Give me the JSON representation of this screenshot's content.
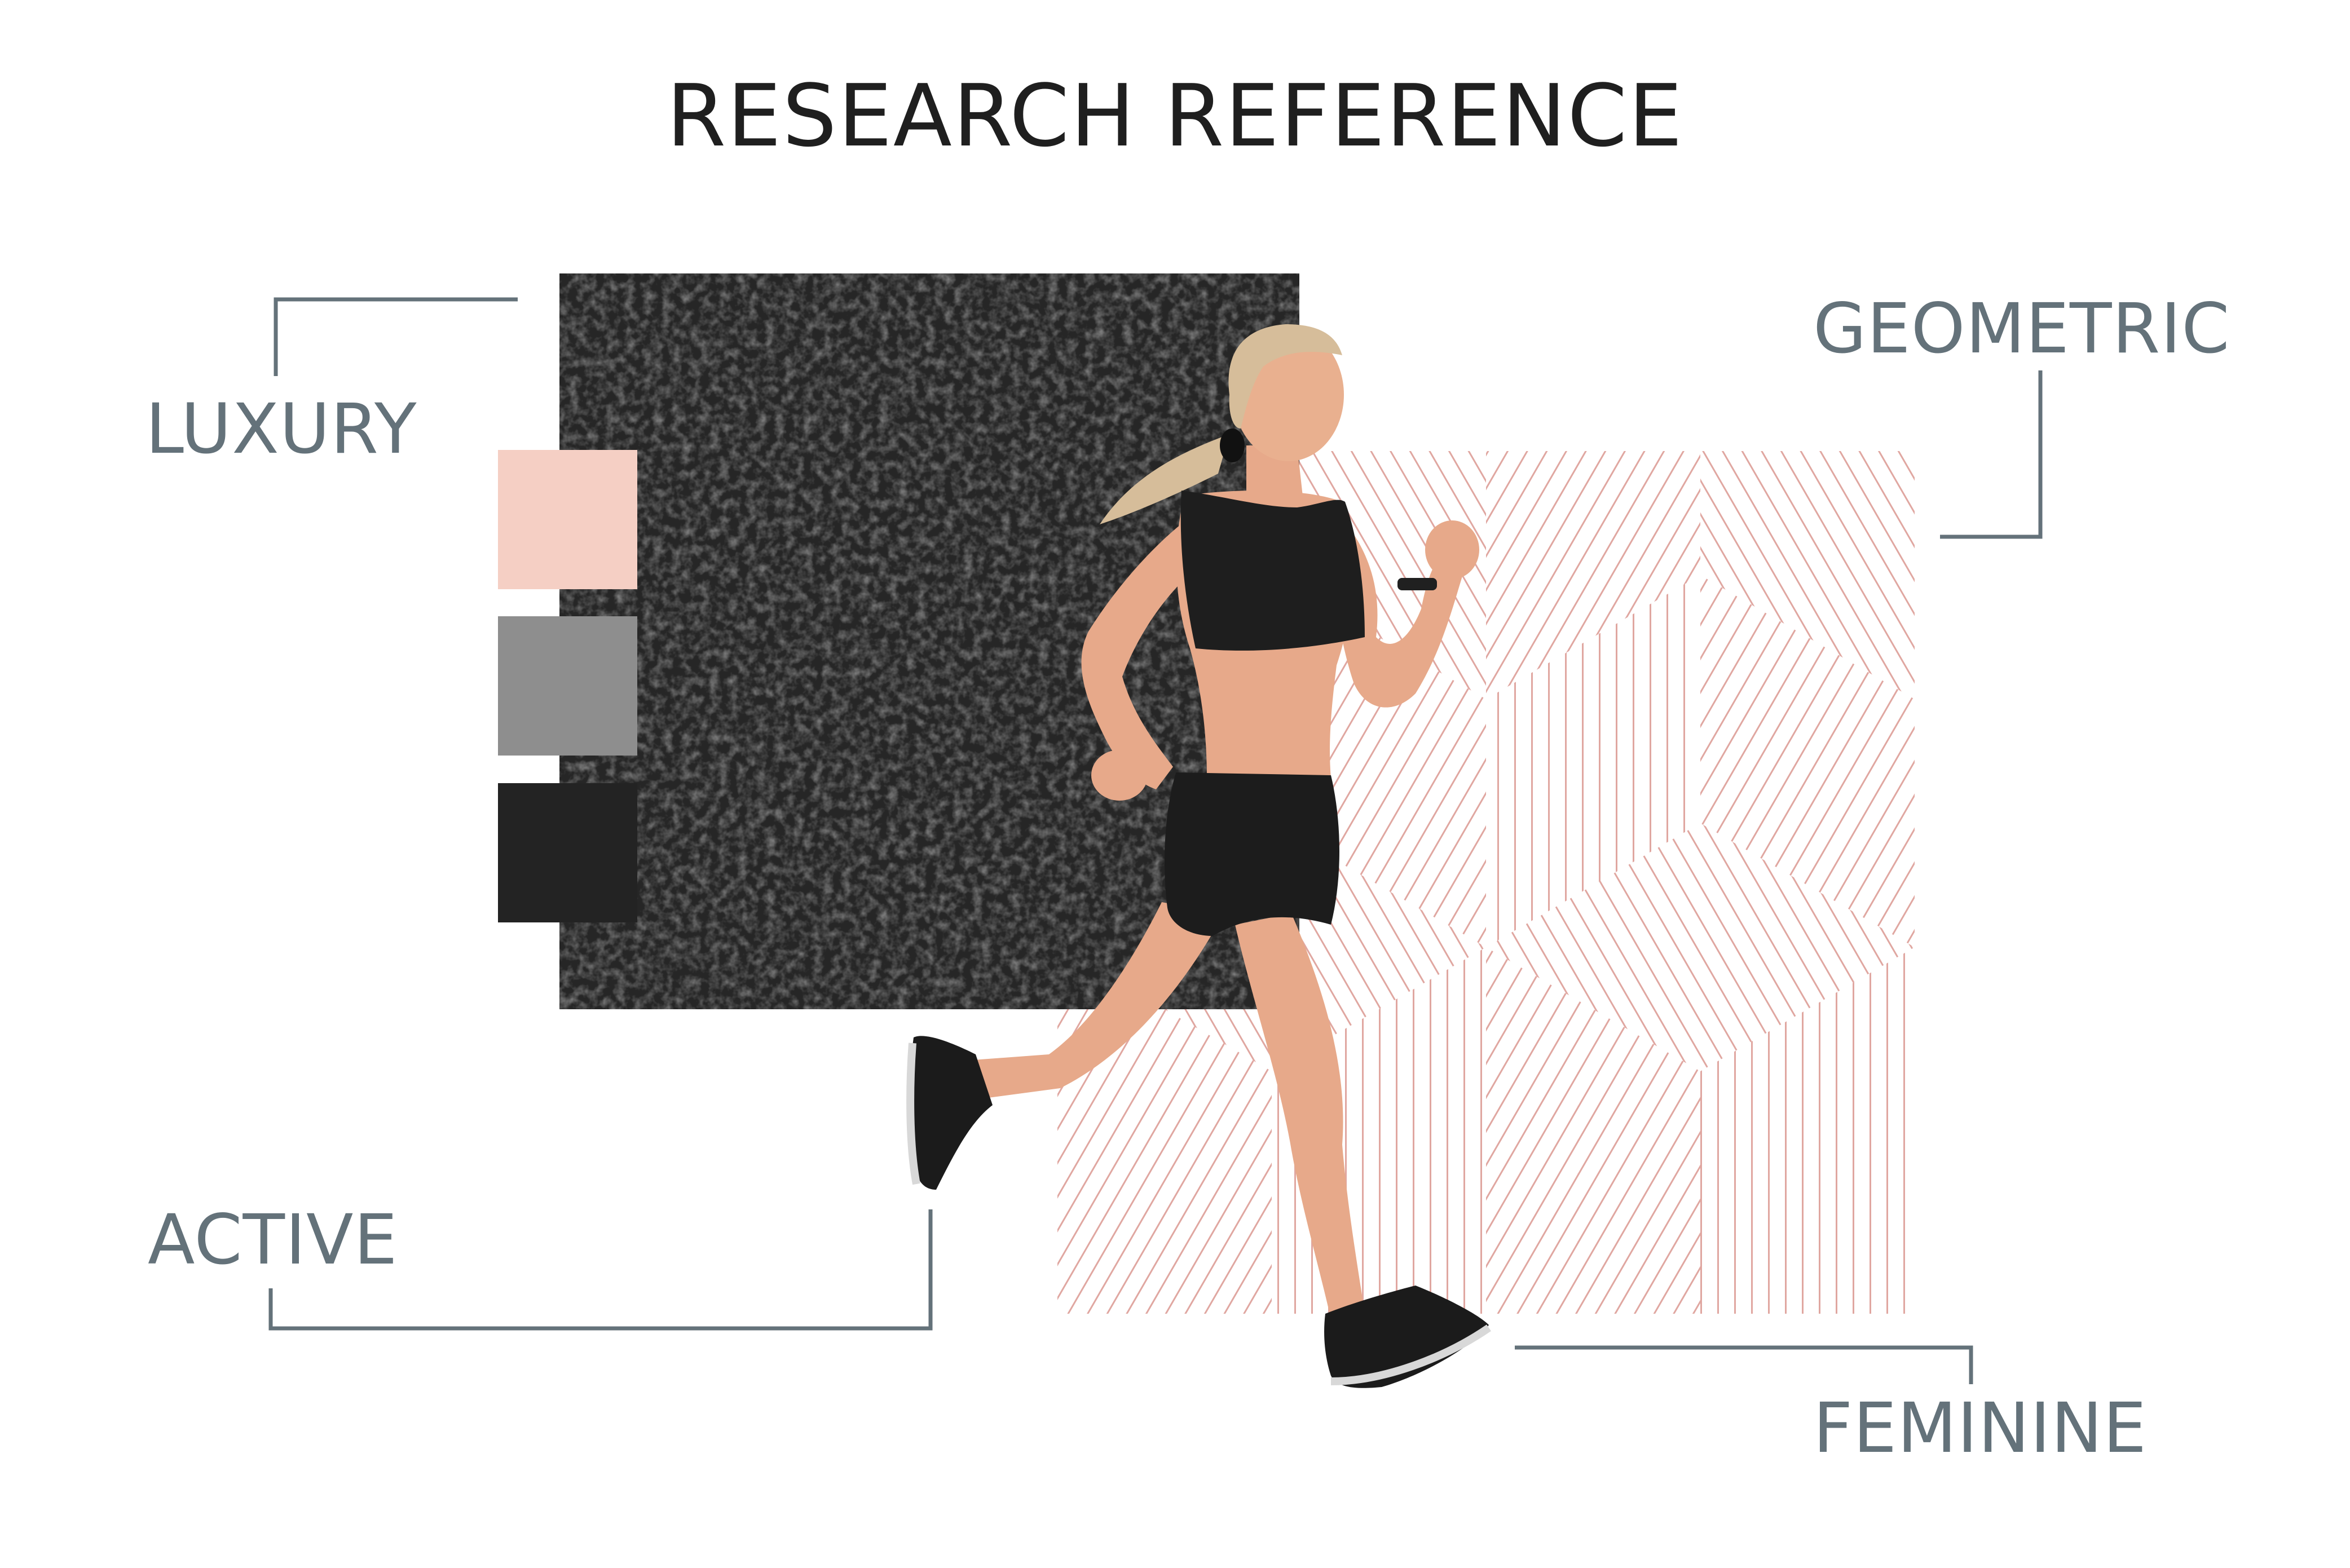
{
  "page": {
    "title": "RESEARCH REFERENCE"
  },
  "labels": {
    "luxury": "LUXURY",
    "geometric": "GEOMETRIC",
    "active": "ACTIVE",
    "feminine": "FEMININE"
  },
  "palette": {
    "swatches": [
      {
        "name": "blush",
        "color": "#f5cfc4"
      },
      {
        "name": "grey",
        "color": "#8e8e8e"
      },
      {
        "name": "charcoal",
        "color": "#232323"
      }
    ],
    "label_color": "#64727a",
    "title_color": "#1f1f1f",
    "pattern_color": "#e0a7a1",
    "leather_color": "#2a2a2a"
  },
  "images": {
    "leather": "leather-texture",
    "pattern": "geometric-stripe-pattern",
    "photo": "woman-running-photo"
  }
}
